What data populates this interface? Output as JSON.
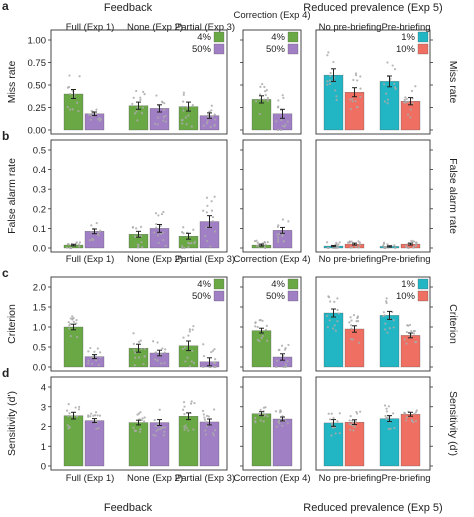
{
  "header": {
    "left": "Feedback",
    "right": "Reduced prevalence (Exp 5)"
  },
  "footer": {
    "left": "Feedback",
    "right": "Reduced prevalence (Exp 5)"
  },
  "colors": {
    "green": "#6aa845",
    "purple": "#a07fc4",
    "cyan": "#22b5c4",
    "salmon": "#ef6f62",
    "dots": "#aaaaaa"
  },
  "groups": {
    "g1": [
      "Full (Exp 1)",
      "None (Exp 2)",
      "Partial (Exp 3)"
    ],
    "g2": [
      "Correction (Exp 4)"
    ],
    "g3": [
      "No pre-briefing",
      "Pre-briefing"
    ]
  },
  "legends": {
    "main": [
      {
        "label": "4%",
        "color": "#6aa845"
      },
      {
        "label": "50%",
        "color": "#a07fc4"
      }
    ],
    "prev": [
      {
        "label": "1%",
        "color": "#22b5c4"
      },
      {
        "label": "10%",
        "color": "#ef6f62"
      }
    ]
  },
  "chart_data": [
    {
      "panel": "a",
      "type": "bar",
      "ylabel": "Miss rate",
      "ylabel_right": "Miss rate",
      "ylim": [
        0,
        1.0
      ],
      "yticks": [
        "0.00",
        "0.25",
        "0.50",
        "0.75",
        "1.00"
      ],
      "legend": "top-right of each colored section",
      "series": {
        "g1": [
          [
            0.4,
            0.18
          ],
          [
            0.27,
            0.24
          ],
          [
            0.26,
            0.16
          ]
        ],
        "g2": [
          [
            0.34,
            0.18
          ]
        ],
        "g3": [
          [
            0.61,
            0.42
          ],
          [
            0.54,
            0.32
          ]
        ]
      },
      "errors": {
        "g1": [
          [
            0.05,
            0.02
          ],
          [
            0.04,
            0.04
          ],
          [
            0.05,
            0.03
          ]
        ],
        "g2": [
          [
            0.04,
            0.05
          ]
        ],
        "g3": [
          [
            0.07,
            0.05
          ],
          [
            0.06,
            0.04
          ]
        ]
      }
    },
    {
      "panel": "b",
      "type": "bar",
      "ylabel": "False alarm rate",
      "ylabel_right": "False alarm rate",
      "ylim": [
        0,
        0.5
      ],
      "yticks": [
        "0.0",
        "0.1",
        "0.2",
        "0.3",
        "0.4",
        "0.5"
      ],
      "series": {
        "g1": [
          [
            0.015,
            0.085
          ],
          [
            0.07,
            0.1
          ],
          [
            0.06,
            0.135
          ]
        ],
        "g2": [
          [
            0.015,
            0.09
          ]
        ],
        "g3": [
          [
            0.01,
            0.02
          ],
          [
            0.008,
            0.02
          ]
        ]
      },
      "errors": {
        "g1": [
          [
            0.004,
            0.012
          ],
          [
            0.015,
            0.02
          ],
          [
            0.015,
            0.03
          ]
        ],
        "g2": [
          [
            0.005,
            0.015
          ]
        ],
        "g3": [
          [
            0.003,
            0.005
          ],
          [
            0.003,
            0.005
          ]
        ]
      }
    },
    {
      "panel": "c",
      "type": "bar",
      "ylabel": "Criterion",
      "ylabel_right": "Criterion",
      "ylim": [
        0,
        2.0
      ],
      "yticks": [
        "0.0",
        "0.5",
        "1.0",
        "1.5",
        "2.0"
      ],
      "series": {
        "g1": [
          [
            1.0,
            0.26
          ],
          [
            0.47,
            0.35
          ],
          [
            0.53,
            0.13
          ]
        ],
        "g2": [
          [
            0.91,
            0.25
          ]
        ],
        "g3": [
          [
            1.35,
            0.95
          ],
          [
            1.29,
            0.79
          ]
        ]
      },
      "errors": {
        "g1": [
          [
            0.07,
            0.05
          ],
          [
            0.1,
            0.07
          ],
          [
            0.12,
            0.1
          ]
        ],
        "g2": [
          [
            0.06,
            0.08
          ]
        ],
        "g3": [
          [
            0.1,
            0.08
          ],
          [
            0.1,
            0.06
          ]
        ]
      }
    },
    {
      "panel": "d",
      "type": "bar",
      "ylabel": "Sensitivity (d')",
      "ylabel_right": "Sensitivity (d')",
      "ylim": [
        0,
        4
      ],
      "yticks": [
        "0",
        "1",
        "2",
        "3",
        "4"
      ],
      "series": {
        "g1": [
          [
            2.55,
            2.3
          ],
          [
            2.2,
            2.2
          ],
          [
            2.52,
            2.23
          ]
        ],
        "g2": [
          [
            2.65,
            2.38
          ]
        ],
        "g3": [
          [
            2.18,
            2.22
          ],
          [
            2.4,
            2.62
          ]
        ]
      },
      "errors": {
        "g1": [
          [
            0.17,
            0.1
          ],
          [
            0.12,
            0.15
          ],
          [
            0.17,
            0.15
          ]
        ],
        "g2": [
          [
            0.1,
            0.1
          ]
        ],
        "g3": [
          [
            0.17,
            0.12
          ],
          [
            0.15,
            0.1
          ]
        ]
      }
    }
  ]
}
